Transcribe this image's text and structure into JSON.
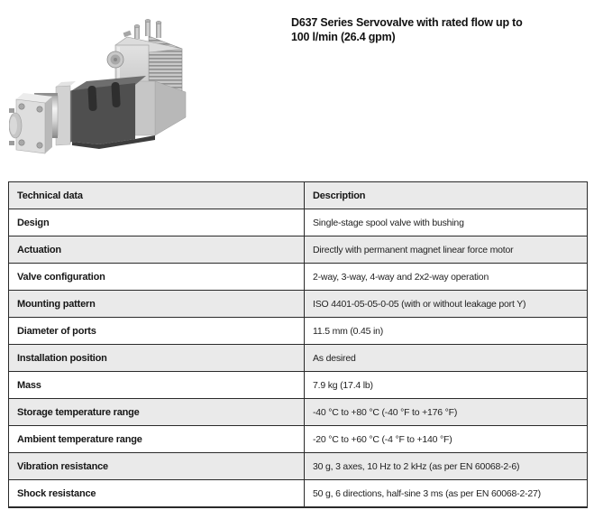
{
  "title": {
    "line1": "D637 Series Servovalve with rated flow up to",
    "line2": "100 l/min (26.4 gpm)"
  },
  "product_image": {
    "alt": "D637 series servovalve photo"
  },
  "table": {
    "columns": [
      "Technical data",
      "Description"
    ],
    "rows": [
      {
        "label": "Design",
        "value": "Single-stage spool valve with bushing"
      },
      {
        "label": "Actuation",
        "value": "Directly with permanent magnet linear force motor"
      },
      {
        "label": "Valve configuration",
        "value": "2-way, 3-way, 4-way and 2x2-way operation"
      },
      {
        "label": "Mounting pattern",
        "value": "ISO 4401-05-05-0-05 (with or without leakage port Y)"
      },
      {
        "label": "Diameter of ports",
        "value": "11.5 mm (0.45 in)"
      },
      {
        "label": "Installation position",
        "value": "As desired"
      },
      {
        "label": "Mass",
        "value": "7.9 kg (17.4 lb)"
      },
      {
        "label": "Storage temperature range",
        "value": "-40 °C to +80 °C (-40 °F to +176 °F)"
      },
      {
        "label": "Ambient temperature range",
        "value": "-20 °C to +60 °C (-4 °F to +140 °F)"
      },
      {
        "label": "Vibration resistance",
        "value": "30 g, 3 axes, 10 Hz to 2 kHz (as per EN 60068-2-6)"
      },
      {
        "label": "Shock resistance",
        "value": "50 g, 6 directions, half-sine 3 ms (as per EN 60068-2-27)"
      }
    ]
  },
  "colors": {
    "row_alt_bg": "#eaeaea",
    "row_bg": "#ffffff",
    "table_border": "#2a2a2a",
    "text": "#1a1a1a"
  }
}
